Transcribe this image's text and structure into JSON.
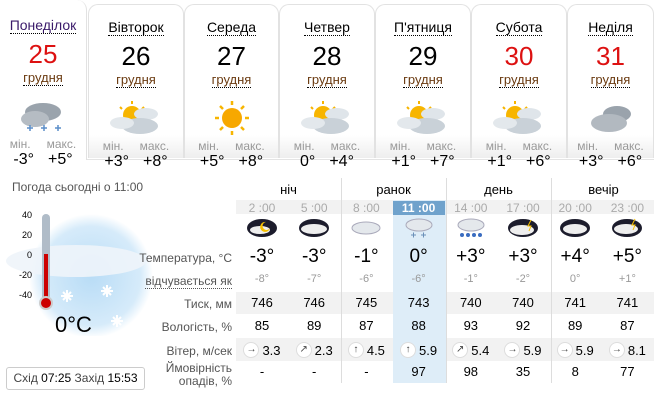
{
  "days": [
    {
      "name": "Понеділок",
      "num": "25",
      "month": "грудня",
      "weekend": true,
      "icon": "cloud-snow-icon",
      "min_label": "мін.",
      "max_label": "макс.",
      "min": "-3°",
      "max": "+5°"
    },
    {
      "name": "Вівторок",
      "num": "26",
      "month": "грудня",
      "weekend": false,
      "icon": "partly-cloudy-icon",
      "min_label": "мін.",
      "max_label": "макс.",
      "min": "+3°",
      "max": "+8°"
    },
    {
      "name": "Середа",
      "num": "27",
      "month": "грудня",
      "weekend": false,
      "icon": "sun-icon",
      "min_label": "мін.",
      "max_label": "макс.",
      "min": "+5°",
      "max": "+8°"
    },
    {
      "name": "Четвер",
      "num": "28",
      "month": "грудня",
      "weekend": false,
      "icon": "partly-cloudy-icon",
      "min_label": "мін.",
      "max_label": "макс.",
      "min": "0°",
      "max": "+4°"
    },
    {
      "name": "П'ятниця",
      "num": "29",
      "month": "грудня",
      "weekend": false,
      "icon": "partly-cloudy-icon",
      "min_label": "мін.",
      "max_label": "макс.",
      "min": "+1°",
      "max": "+7°"
    },
    {
      "name": "Субота",
      "num": "30",
      "month": "грудня",
      "weekend": true,
      "icon": "partly-cloudy-icon",
      "min_label": "мін.",
      "max_label": "макс.",
      "min": "+1°",
      "max": "+6°"
    },
    {
      "name": "Неділя",
      "num": "31",
      "month": "грудня",
      "weekend": true,
      "icon": "cloudy-icon",
      "min_label": "мін.",
      "max_label": "макс.",
      "min": "+3°",
      "max": "+6°"
    }
  ],
  "now": {
    "title": "Погода сьогодні о 11:00",
    "temp": "0°C",
    "scale": [
      "40",
      "20",
      "0",
      "-20",
      "-40"
    ],
    "sunrise_label": "Схід",
    "sunrise": "07:25",
    "sunset_label": "Захід",
    "sunset": "15:53"
  },
  "labels": {
    "temp": "Температура, °C",
    "feels": "відчувається як",
    "pressure": "Тиск, мм",
    "humidity": "Вологість, %",
    "wind": "Вітер, м/сек",
    "precip1": "Ймовірність",
    "precip2": "опадів, %"
  },
  "periods": [
    "ніч",
    "ранок",
    "день",
    "вечір"
  ],
  "hours": [
    {
      "time": "2 :00",
      "icon": "night-clear-icon",
      "temp": "-3°",
      "feels": "-8°",
      "pressure": "746",
      "humidity": "85",
      "wind_dir": "→",
      "wind": "3.3",
      "precip": "-"
    },
    {
      "time": "5 :00",
      "icon": "night-cloudy-icon",
      "temp": "-3°",
      "feels": "-7°",
      "pressure": "746",
      "humidity": "89",
      "wind_dir": "↗",
      "wind": "2.3",
      "precip": "-"
    },
    {
      "time": "8 :00",
      "icon": "cloud-icon",
      "temp": "-1°",
      "feels": "-6°",
      "pressure": "745",
      "humidity": "87",
      "wind_dir": "↑",
      "wind": "4.5",
      "precip": "-"
    },
    {
      "time": "11 :00",
      "icon": "cloud-snow-icon",
      "temp": "0°",
      "feels": "-6°",
      "pressure": "743",
      "humidity": "88",
      "wind_dir": "↑",
      "wind": "5.9",
      "precip": "97",
      "current": true
    },
    {
      "time": "14 :00",
      "icon": "cloud-rain-icon",
      "temp": "+3°",
      "feels": "-1°",
      "pressure": "740",
      "humidity": "93",
      "wind_dir": "↗",
      "wind": "5.4",
      "precip": "98"
    },
    {
      "time": "17 :00",
      "icon": "thunder-cloud-icon",
      "temp": "+3°",
      "feels": "-2°",
      "pressure": "740",
      "humidity": "92",
      "wind_dir": "→",
      "wind": "5.9",
      "precip": "35"
    },
    {
      "time": "20 :00",
      "icon": "night-cloud-icon",
      "temp": "+4°",
      "feels": "0°",
      "pressure": "741",
      "humidity": "89",
      "wind_dir": "→",
      "wind": "5.9",
      "precip": "8"
    },
    {
      "time": "23 :00",
      "icon": "thunder-rain-icon",
      "temp": "+5°",
      "feels": "+1°",
      "pressure": "741",
      "humidity": "87",
      "wind_dir": "→",
      "wind": "8.1",
      "precip": "77"
    }
  ],
  "colors": {
    "weekend": "#dd1111",
    "highlight": "#deedf8",
    "current_header": "#6fa2cc"
  }
}
